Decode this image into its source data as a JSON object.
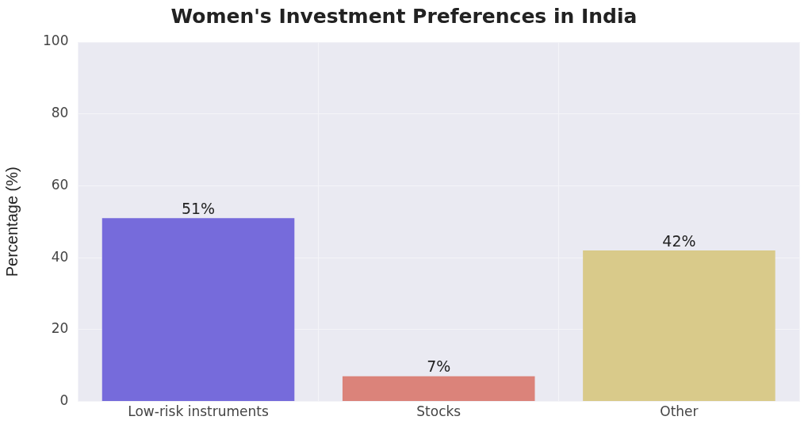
{
  "chart_data": {
    "type": "bar",
    "title": "Women's Investment Preferences in India",
    "ylabel": "Percentage (%)",
    "categories": [
      "Low-risk instruments",
      "Stocks",
      "Other"
    ],
    "values": [
      51,
      7,
      42
    ],
    "colors": [
      "#766bdb",
      "#db837a",
      "#d9ca8a"
    ],
    "value_labels": [
      "51%",
      "7%",
      "42%"
    ],
    "ylim": [
      0,
      100
    ],
    "yticks": [
      0,
      20,
      40,
      60,
      80,
      100
    ],
    "grid": true
  }
}
